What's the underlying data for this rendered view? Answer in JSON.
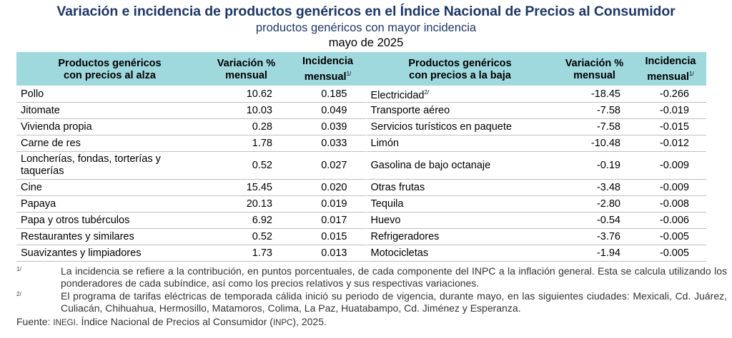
{
  "title": "Variación e incidencia de productos genéricos en el Índice Nacional de Precios al Consumidor",
  "subtitle": "productos genéricos con mayor incidencia",
  "period": "mayo de 2025",
  "headers": {
    "rising_products": [
      "Productos genéricos",
      "con precios al alza"
    ],
    "variation": [
      "Variación %",
      "mensual"
    ],
    "incidence": [
      "Incidencia",
      "mensual"
    ],
    "incidence_note_mark": "1/",
    "falling_products": [
      "Productos genéricos",
      "con precios a la baja"
    ]
  },
  "rows": [
    {
      "rise_name": "Pollo",
      "rise_var": "10.62",
      "rise_inc": "0.185",
      "fall_name": "Electricidad",
      "fall_mark": "2/",
      "fall_var": "-18.45",
      "fall_inc": "-0.266"
    },
    {
      "rise_name": "Jitomate",
      "rise_var": "10.03",
      "rise_inc": "0.049",
      "fall_name": "Transporte aéreo",
      "fall_mark": "",
      "fall_var": "-7.58",
      "fall_inc": "-0.019"
    },
    {
      "rise_name": "Vivienda propia",
      "rise_var": "0.28",
      "rise_inc": "0.039",
      "fall_name": "Servicios turísticos en paquete",
      "fall_mark": "",
      "fall_var": "-7.58",
      "fall_inc": "-0.015"
    },
    {
      "rise_name": "Carne de res",
      "rise_var": "1.78",
      "rise_inc": "0.033",
      "fall_name": "Limón",
      "fall_mark": "",
      "fall_var": "-10.48",
      "fall_inc": "-0.012"
    },
    {
      "rise_name": "Loncherías, fondas, torterías y taquerías",
      "rise_var": "0.52",
      "rise_inc": "0.027",
      "fall_name": "Gasolina de bajo octanaje",
      "fall_mark": "",
      "fall_var": "-0.19",
      "fall_inc": "-0.009"
    },
    {
      "rise_name": "Cine",
      "rise_var": "15.45",
      "rise_inc": "0.020",
      "fall_name": "Otras frutas",
      "fall_mark": "",
      "fall_var": "-3.48",
      "fall_inc": "-0.009"
    },
    {
      "rise_name": "Papaya",
      "rise_var": "20.13",
      "rise_inc": "0.019",
      "fall_name": "Tequila",
      "fall_mark": "",
      "fall_var": "-2.80",
      "fall_inc": "-0.008"
    },
    {
      "rise_name": "Papa y otros tubérculos",
      "rise_var": "6.92",
      "rise_inc": "0.017",
      "fall_name": "Huevo",
      "fall_mark": "",
      "fall_var": "-0.54",
      "fall_inc": "-0.006"
    },
    {
      "rise_name": "Restaurantes y similares",
      "rise_var": "0.52",
      "rise_inc": "0.015",
      "fall_name": "Refrigeradores",
      "fall_mark": "",
      "fall_var": "-3.76",
      "fall_inc": "-0.005"
    },
    {
      "rise_name": "Suavizantes y limpiadores",
      "rise_var": "1.73",
      "rise_inc": "0.013",
      "fall_name": "Motocicletas",
      "fall_mark": "",
      "fall_var": "-1.94",
      "fall_inc": "-0.005"
    }
  ],
  "footnotes": [
    {
      "mark": "1/",
      "text": "La incidencia se refiere a la contribución, en puntos porcentuales, de cada componente del INPC a la inflación general. Esta se calcula utilizando los ponderadores de cada subíndice, así como los precios relativos y sus respectivas variaciones."
    },
    {
      "mark": "2/",
      "text": "El programa de tarifas eléctricas de temporada cálida inició su periodo de vigencia, durante mayo, en las siguientes ciudades: Mexicali, Cd. Juárez, Culiacán, Chihuahua, Hermosillo, Matamoros, Colima, La Paz, Huatabampo, Cd. Jiménez y Esperanza."
    }
  ],
  "source": {
    "label": "Fuente: ",
    "org": "INEGI",
    "text": ". Índice Nacional de Precios al Consumidor (",
    "abbr": "INPC",
    "year": "), 2025."
  },
  "colors": {
    "title": "#1f3864",
    "header_bg": "#9fd9de",
    "rule": "#bfbfbf"
  }
}
